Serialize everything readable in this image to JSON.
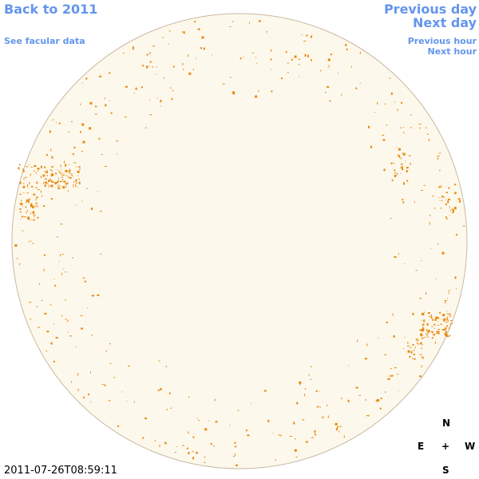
{
  "nav": {
    "back": "Back to 2011",
    "facular": "See facular data",
    "previous_day": "Previous day",
    "next_day": "Next day",
    "previous_hour": "Previous hour",
    "next_hour": "Next hour"
  },
  "timestamp": "2011-07-26T08:59:11",
  "compass": {
    "north": "N",
    "east": "E",
    "center": "+",
    "west": "W",
    "south": "S"
  }
}
